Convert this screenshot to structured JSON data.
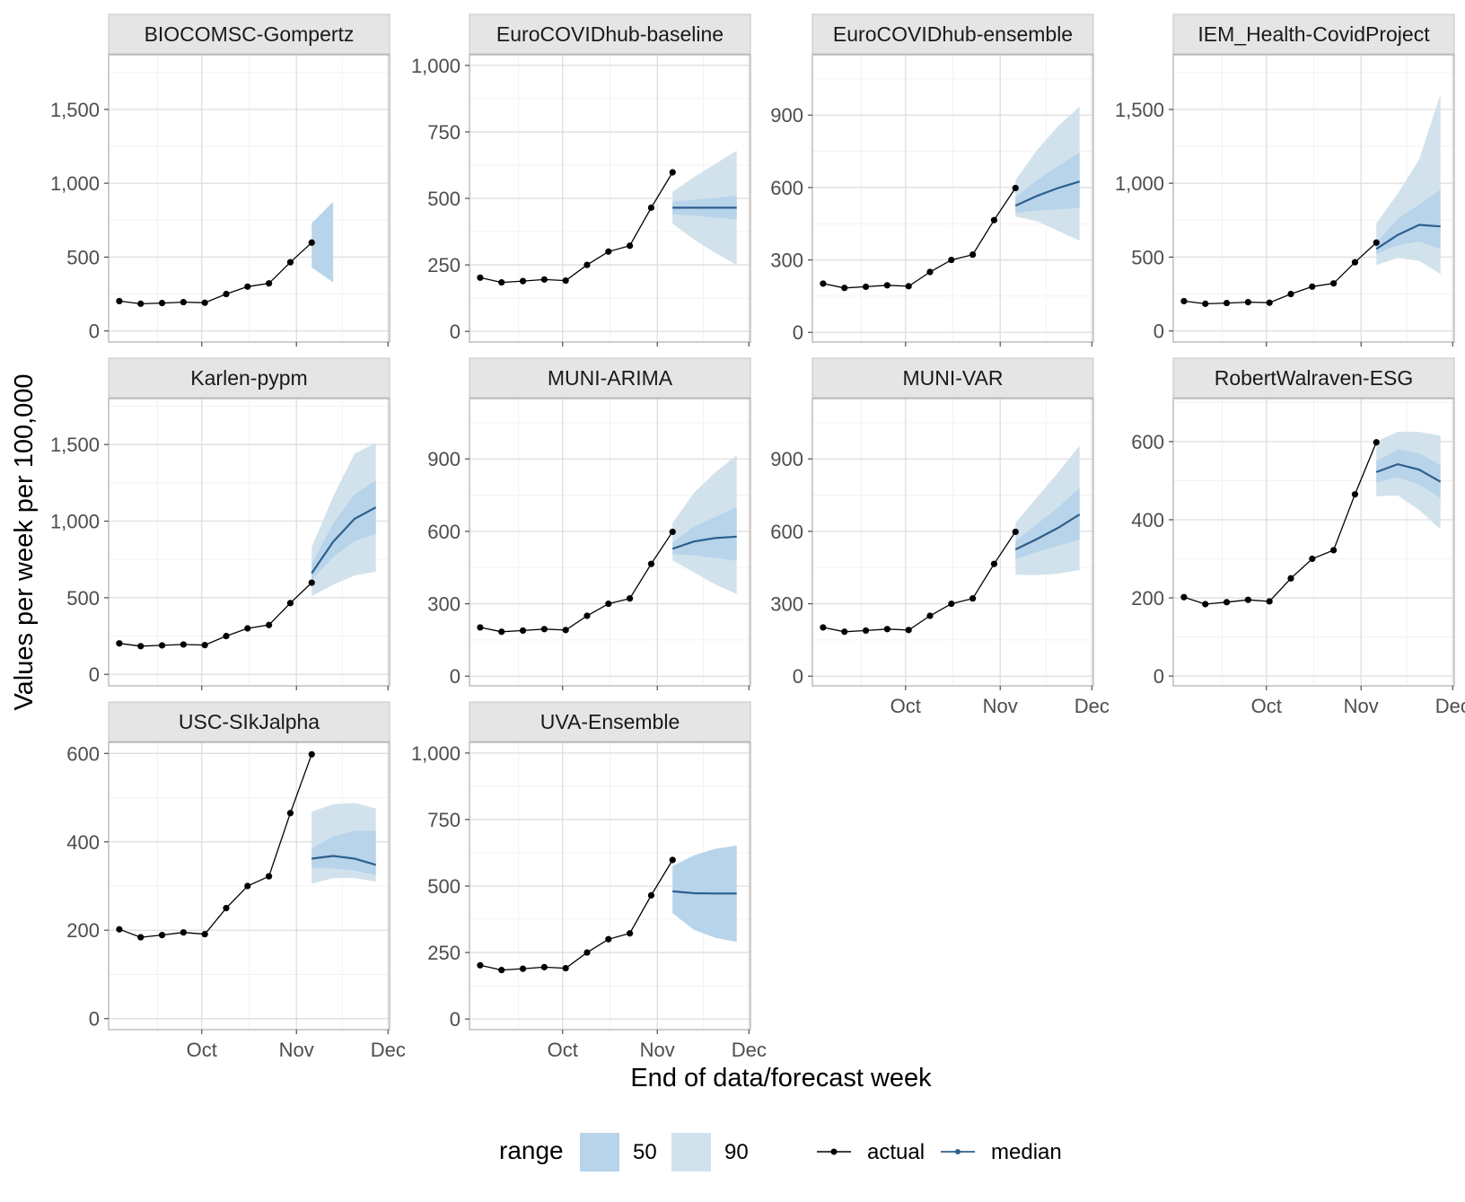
{
  "chart_data": {
    "type": "line",
    "layout": "facet_wrap",
    "xlabel": "End of data/forecast week",
    "ylabel": "Values per week per 100,000",
    "x_tick_labels": [
      "Oct",
      "Nov",
      "Dec"
    ],
    "x_ticks_days": [
      30,
      61,
      91
    ],
    "x_minor_days": [
      15.5,
      45.5,
      76
    ],
    "x_range_days": [
      -0.5,
      91.5
    ],
    "actual_days": [
      3,
      10,
      17,
      24,
      31,
      38,
      45,
      52,
      59,
      66
    ],
    "actual_values": [
      202,
      184,
      189,
      195,
      191,
      250,
      300,
      322,
      465,
      598
    ],
    "forecast_days": [
      66,
      73,
      80,
      87
    ],
    "legend": {
      "title": "range",
      "ranges": [
        {
          "label": "50",
          "color": "#b7d4ea"
        },
        {
          "label": "90",
          "color": "#d2e2ec"
        }
      ],
      "actual_label": "actual",
      "median_label": "median"
    },
    "colors": {
      "band50": "#b7d4ea",
      "band90": "#d2e2ec",
      "median": "#2e5f8c",
      "actual": "#000000"
    },
    "panels": [
      {
        "name": "BIOCOMSC-Gompertz",
        "ylim": [
          -75,
          1870
        ],
        "y_ticks": [
          0,
          500,
          1000,
          1500
        ],
        "y_tick_labels": [
          "0",
          "500",
          "1,000",
          "1,500"
        ],
        "fc_days": [
          66,
          73
        ],
        "q50_lo": [
          430,
          330
        ],
        "q50_hi": [
          730,
          875
        ],
        "median": null,
        "q90_lo": null,
        "q90_hi": null
      },
      {
        "name": "EuroCOVIDhub-baseline",
        "ylim": [
          -40,
          1040
        ],
        "y_ticks": [
          0,
          250,
          500,
          750,
          1000
        ],
        "y_tick_labels": [
          "0",
          "250",
          "500",
          "750",
          "1,000"
        ],
        "fc_days": [
          66,
          73,
          80,
          87
        ],
        "median": [
          465,
          465,
          465,
          465
        ],
        "q50_lo": [
          440,
          435,
          428,
          420
        ],
        "q50_hi": [
          488,
          495,
          502,
          510
        ],
        "q90_lo": [
          405,
          345,
          295,
          250
        ],
        "q90_hi": [
          525,
          580,
          630,
          680
        ]
      },
      {
        "name": "EuroCOVIDhub-ensemble",
        "ylim": [
          -40,
          1150
        ],
        "y_ticks": [
          0,
          300,
          600,
          900
        ],
        "y_tick_labels": [
          "0",
          "300",
          "600",
          "900"
        ],
        "fc_days": [
          66,
          73,
          80,
          87
        ],
        "median": [
          525,
          565,
          598,
          625
        ],
        "q50_lo": [
          495,
          505,
          510,
          515
        ],
        "q50_hi": [
          560,
          630,
          690,
          745
        ],
        "q90_lo": [
          480,
          460,
          420,
          380
        ],
        "q90_hi": [
          630,
          755,
          855,
          935
        ]
      },
      {
        "name": "IEM_Health-CovidProject",
        "ylim": [
          -75,
          1870
        ],
        "y_ticks": [
          0,
          500,
          1000,
          1500
        ],
        "y_tick_labels": [
          "0",
          "500",
          "1,000",
          "1,500"
        ],
        "fc_days": [
          66,
          73,
          80,
          87
        ],
        "median": [
          555,
          650,
          718,
          708
        ],
        "q50_lo": [
          520,
          580,
          605,
          555
        ],
        "q50_hi": [
          598,
          760,
          855,
          955
        ],
        "q90_lo": [
          445,
          495,
          475,
          385
        ],
        "q90_hi": [
          730,
          930,
          1160,
          1605
        ]
      },
      {
        "name": "Karlen-pypm",
        "ylim": [
          -75,
          1800
        ],
        "y_ticks": [
          0,
          500,
          1000,
          1500
        ],
        "y_tick_labels": [
          "0",
          "500",
          "1,000",
          "1,500"
        ],
        "fc_days": [
          66,
          73,
          80,
          87
        ],
        "median": [
          660,
          865,
          1015,
          1090
        ],
        "q50_lo": [
          615,
          765,
          870,
          920
        ],
        "q50_hi": [
          720,
          985,
          1175,
          1265
        ],
        "q90_lo": [
          510,
          585,
          645,
          670
        ],
        "q90_hi": [
          830,
          1160,
          1440,
          1510
        ]
      },
      {
        "name": "MUNI-ARIMA",
        "ylim": [
          -40,
          1150
        ],
        "y_ticks": [
          0,
          300,
          600,
          900
        ],
        "y_tick_labels": [
          "0",
          "300",
          "600",
          "900"
        ],
        "fc_days": [
          66,
          73,
          80,
          87
        ],
        "median": [
          528,
          558,
          572,
          578
        ],
        "q50_lo": [
          505,
          500,
          490,
          478
        ],
        "q50_hi": [
          555,
          620,
          660,
          700
        ],
        "q90_lo": [
          480,
          430,
          380,
          340
        ],
        "q90_hi": [
          635,
          760,
          845,
          915
        ]
      },
      {
        "name": "MUNI-VAR",
        "ylim": [
          -40,
          1150
        ],
        "y_ticks": [
          0,
          300,
          600,
          900
        ],
        "y_tick_labels": [
          "0",
          "300",
          "600",
          "900"
        ],
        "fc_days": [
          66,
          73,
          80,
          87
        ],
        "median": [
          525,
          568,
          615,
          670
        ],
        "q50_lo": [
          485,
          515,
          540,
          565
        ],
        "q50_hi": [
          560,
          630,
          700,
          780
        ],
        "q90_lo": [
          420,
          418,
          425,
          440
        ],
        "q90_hi": [
          635,
          740,
          845,
          955
        ]
      },
      {
        "name": "RobertWalraven-ESG",
        "ylim": [
          -25,
          710
        ],
        "y_ticks": [
          0,
          200,
          400,
          600
        ],
        "y_tick_labels": [
          "0",
          "200",
          "400",
          "600"
        ],
        "fc_days": [
          66,
          73,
          80,
          87
        ],
        "median": [
          522,
          542,
          528,
          497
        ],
        "q50_lo": [
          495,
          508,
          490,
          455
        ],
        "q50_hi": [
          550,
          580,
          570,
          540
        ],
        "q90_lo": [
          460,
          462,
          425,
          375
        ],
        "q90_hi": [
          600,
          625,
          625,
          615
        ]
      },
      {
        "name": "USC-SIkJalpha",
        "ylim": [
          -25,
          625
        ],
        "y_ticks": [
          0,
          200,
          400,
          600
        ],
        "y_tick_labels": [
          "0",
          "200",
          "400",
          "600"
        ],
        "fc_days": [
          66,
          73,
          80,
          87
        ],
        "median": [
          362,
          368,
          362,
          348
        ],
        "q50_lo": [
          340,
          340,
          335,
          325
        ],
        "q50_hi": [
          385,
          412,
          425,
          425
        ],
        "q90_lo": [
          305,
          318,
          318,
          310
        ],
        "q90_hi": [
          468,
          485,
          488,
          475
        ]
      },
      {
        "name": "UVA-Ensemble",
        "ylim": [
          -40,
          1040
        ],
        "y_ticks": [
          0,
          250,
          500,
          750,
          1000
        ],
        "y_tick_labels": [
          "0",
          "250",
          "500",
          "750",
          "1,000"
        ],
        "fc_days": [
          66,
          73,
          80,
          87
        ],
        "median": [
          480,
          473,
          472,
          472
        ],
        "q50_lo": [
          398,
          335,
          305,
          290
        ],
        "q50_hi": [
          575,
          615,
          640,
          652
        ],
        "q90_lo": null,
        "q90_hi": null
      }
    ]
  }
}
